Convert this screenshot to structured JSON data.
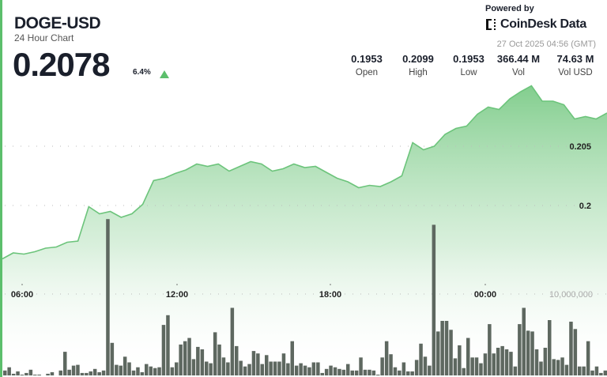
{
  "header": {
    "title": "DOGE-USD",
    "subtitle": "24 Hour Chart",
    "price": "0.2078",
    "change": "6.4%",
    "change_direction": "up"
  },
  "branding": {
    "powered_by": "Powered by",
    "logo_text": "CoinDesk Data",
    "timestamp": "27 Oct 2025 04:56 (GMT)"
  },
  "stats": [
    {
      "value": "0.1953",
      "label": "Open"
    },
    {
      "value": "0.2099",
      "label": "High"
    },
    {
      "value": "0.1953",
      "label": "Low"
    },
    {
      "value": "366.44 M",
      "label": "Vol"
    },
    {
      "value": "74.63 M",
      "label": "Vol USD"
    }
  ],
  "colors": {
    "line": "#6cc47b",
    "fill": "#7ccb88",
    "volume": "#5e6860",
    "up": "#5cbf6c"
  },
  "chart_data": {
    "type": "area",
    "x_tick_labels": [
      "06:00",
      "12:00",
      "18:00",
      "00:00"
    ],
    "y_tick_labels": [
      "0.2",
      "0.205"
    ],
    "y_ticks": [
      0.2,
      0.205
    ],
    "volume_tick_label": "10,000,000",
    "volume_tick": 10000000,
    "grid": "dotted horizontal",
    "price": [
      0.1955,
      0.196,
      0.1959,
      0.1961,
      0.1964,
      0.1965,
      0.1969,
      0.197,
      0.1999,
      0.1993,
      0.1995,
      0.199,
      0.1993,
      0.2001,
      0.2021,
      0.2023,
      0.2027,
      0.203,
      0.2035,
      0.2033,
      0.2035,
      0.2029,
      0.2033,
      0.2037,
      0.2035,
      0.2029,
      0.2031,
      0.2035,
      0.2032,
      0.2033,
      0.2028,
      0.2023,
      0.202,
      0.2015,
      0.2017,
      0.2016,
      0.202,
      0.2025,
      0.2053,
      0.2047,
      0.205,
      0.206,
      0.2065,
      0.2067,
      0.2077,
      0.2083,
      0.2081,
      0.209,
      0.2096,
      0.2101,
      0.2088,
      0.2088,
      0.2085,
      0.2073,
      0.2075,
      0.2073,
      0.2078
    ],
    "volume_millions": [
      0.6,
      1.0,
      0.2,
      0.5,
      0.1,
      0.3,
      0.7,
      0.1,
      0.1,
      0,
      0.2,
      0.4,
      0,
      0.6,
      2.9,
      0.7,
      1.2,
      1.3,
      0.3,
      0.3,
      0.5,
      0.8,
      0.4,
      0.6,
      19.2,
      4.0,
      1.3,
      1.2,
      2.3,
      1.6,
      0.6,
      1.0,
      0.4,
      1.4,
      1.1,
      0.9,
      1.0,
      6.2,
      7.4,
      1.0,
      1.6,
      3.8,
      4.2,
      4.6,
      2.0,
      3.5,
      3.2,
      1.7,
      1.5,
      5.3,
      3.8,
      2.2,
      1.6,
      8.3,
      3.6,
      1.8,
      1.1,
      1.4,
      3.0,
      2.7,
      1.4,
      2.5,
      1.7,
      1.7,
      1.7,
      2.7,
      1.5,
      4.2,
      1.2,
      1.5,
      1.2,
      1.0,
      1.6,
      1.6,
      0.3,
      0.8,
      1.2,
      1.0,
      0.8,
      0.7,
      1.4,
      0.6,
      0.6,
      2.2,
      0.7,
      0.7,
      0.6,
      0.1,
      2.2,
      4.2,
      2.6,
      1.0,
      0.6,
      1.6,
      0.5,
      0.5,
      1.9,
      3.9,
      2.3,
      1.2,
      18.5,
      5.4,
      6.7,
      6.7,
      5.6,
      2.1,
      3.7,
      0.9,
      4.6,
      2.2,
      2.2,
      1.5,
      2.7,
      6.3,
      2.7,
      3.4,
      3.6,
      3.2,
      2.9,
      1.1,
      6.3,
      8.3,
      5.5,
      5.4,
      3.2,
      1.7,
      3.4,
      6.8,
      2.0,
      1.9,
      2.2,
      1.3,
      6.6,
      5.7,
      1.1,
      1.1,
      4.2,
      0.6,
      1.1,
      0.3,
      0.6
    ]
  }
}
